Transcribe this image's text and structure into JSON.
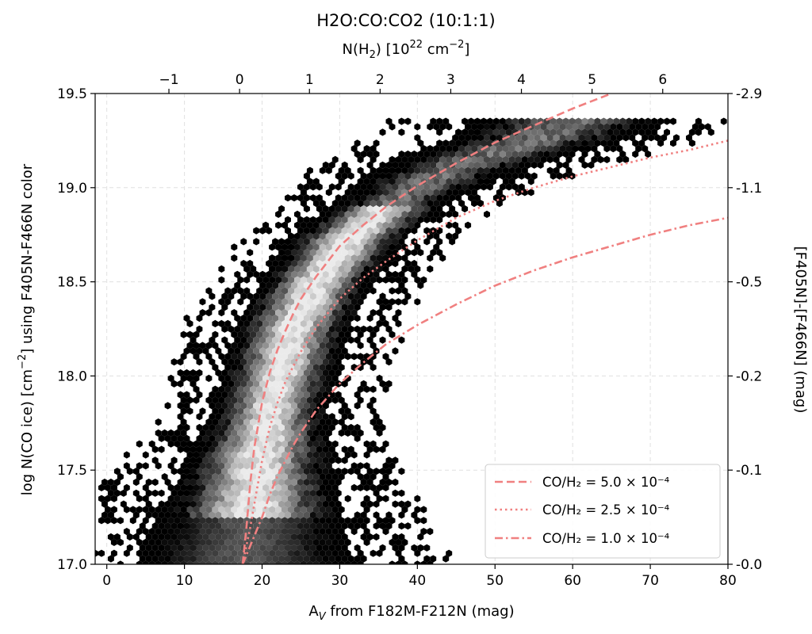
{
  "chart_data": {
    "type": "hexbin",
    "title": "H2O:CO:CO2 (10:1:1)",
    "xlabel_base": "A",
    "xlabel_sub": "V",
    "xlabel_rest": " from F182M-F212N (mag)",
    "ylabel_pre": "log N(CO ice) [cm",
    "ylabel_exp": "−2",
    "ylabel_post": "] using F405N-F466N color",
    "ylabel_right": "[F405N]-[F466N] (mag)",
    "top_label_pre": "N(H",
    "top_label_sub": "2",
    "top_label_mid": ") [10",
    "top_label_exp": "22",
    "top_label_mid2": " cm",
    "top_label_exp2": "−2",
    "top_label_post": "]",
    "xlim": [
      -1.5,
      80
    ],
    "ylim": [
      17.0,
      19.5
    ],
    "x_ticks": [
      0,
      10,
      20,
      30,
      40,
      50,
      60,
      70,
      80
    ],
    "y_ticks": [
      17.0,
      17.5,
      18.0,
      18.5,
      19.0,
      19.5
    ],
    "y_tick_labels": [
      "17.0",
      "17.5",
      "18.0",
      "18.5",
      "19.0",
      "19.5"
    ],
    "top_ticks": [
      -1,
      0,
      1,
      2,
      3,
      4,
      5,
      6
    ],
    "top_tick_labels": [
      "−1",
      "0",
      "1",
      "2",
      "3",
      "4",
      "5",
      "6"
    ],
    "top_tick_positions_av": [
      8.0,
      17.1,
      26.1,
      35.2,
      44.3,
      53.4,
      62.5,
      71.6
    ],
    "right_tick_labels": [
      "-0.0",
      "-0.1",
      "-0.2",
      "-0.5",
      "-1.1",
      "-2.9"
    ],
    "grid": true,
    "legend_position": "lower-right",
    "line_color": "#f08080",
    "density_band": {
      "x": [
        17.5,
        19.5,
        21.5,
        24,
        27,
        31,
        36,
        41,
        46,
        51,
        56
      ],
      "y": [
        17.0,
        17.5,
        17.9,
        18.25,
        18.5,
        18.72,
        18.9,
        19.03,
        19.13,
        19.2,
        19.26
      ]
    },
    "series": [
      {
        "name": "CO/H₂ = 5.0 × 10⁻⁴",
        "style": "dashed",
        "x": [
          17.5,
          18.0,
          18.5,
          19,
          20,
          21,
          22,
          23,
          24,
          25,
          27,
          30,
          33,
          36,
          40,
          45,
          50,
          55,
          60,
          65
        ],
        "y": [
          17.0,
          17.2,
          17.44,
          17.62,
          17.86,
          18.02,
          18.14,
          18.24,
          18.33,
          18.41,
          18.53,
          18.69,
          18.8,
          18.9,
          19.01,
          19.13,
          19.24,
          19.33,
          19.42,
          19.5
        ]
      },
      {
        "name": "CO/H₂ = 2.5 × 10⁻⁴",
        "style": "dotted",
        "x": [
          17.5,
          18.0,
          18.5,
          19,
          20,
          21,
          22,
          23,
          24,
          25,
          27,
          30,
          33,
          36,
          40,
          45,
          50,
          55,
          60,
          65,
          70,
          75,
          80
        ],
        "y": [
          17.0,
          17.1,
          17.2,
          17.32,
          17.55,
          17.73,
          17.86,
          17.97,
          18.05,
          18.13,
          18.26,
          18.41,
          18.52,
          18.61,
          18.72,
          18.84,
          18.93,
          19.0,
          19.06,
          19.11,
          19.16,
          19.2,
          19.25
        ]
      },
      {
        "name": "CO/H₂ = 1.0 × 10⁻⁴",
        "style": "dashdot",
        "x": [
          17.5,
          18.0,
          18.5,
          19,
          20,
          21,
          22,
          23,
          24,
          25,
          27,
          30,
          33,
          36,
          40,
          45,
          50,
          55,
          60,
          65,
          70,
          75,
          80
        ],
        "y": [
          17.0,
          17.05,
          17.1,
          17.15,
          17.25,
          17.37,
          17.47,
          17.55,
          17.63,
          17.7,
          17.82,
          17.96,
          18.07,
          18.17,
          18.27,
          18.38,
          18.48,
          18.56,
          18.63,
          18.69,
          18.75,
          18.8,
          18.84
        ]
      }
    ]
  }
}
